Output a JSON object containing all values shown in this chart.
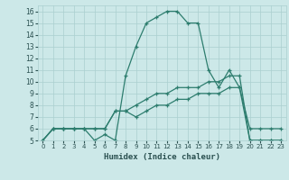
{
  "xlabel": "Humidex (Indice chaleur)",
  "xlim": [
    -0.5,
    23.5
  ],
  "ylim": [
    5,
    16.5
  ],
  "xticks": [
    0,
    1,
    2,
    3,
    4,
    5,
    6,
    7,
    8,
    9,
    10,
    11,
    12,
    13,
    14,
    15,
    16,
    17,
    18,
    19,
    20,
    21,
    22,
    23
  ],
  "yticks": [
    5,
    6,
    7,
    8,
    9,
    10,
    11,
    12,
    13,
    14,
    15,
    16
  ],
  "bg_color": "#cce8e8",
  "line_color": "#2d7d6e",
  "grid_color": "#aacfcf",
  "line1_x": [
    0,
    1,
    2,
    3,
    4,
    5,
    6,
    7,
    8,
    9,
    10,
    11,
    12,
    13,
    14,
    15,
    16,
    17,
    18,
    19,
    20,
    21,
    22,
    23
  ],
  "line1_y": [
    5,
    6,
    6,
    6,
    6,
    5,
    5.5,
    5,
    10.5,
    13,
    15,
    15.5,
    16,
    16,
    15,
    15,
    11,
    9.5,
    11,
    9.5,
    6,
    6,
    6,
    6
  ],
  "line2_x": [
    0,
    1,
    2,
    3,
    4,
    5,
    6,
    7,
    8,
    9,
    10,
    11,
    12,
    13,
    14,
    15,
    16,
    17,
    18,
    19,
    20,
    21,
    22,
    23
  ],
  "line2_y": [
    5,
    6,
    6,
    6,
    6,
    6,
    6,
    7.5,
    7.5,
    7,
    7.5,
    8,
    8,
    8.5,
    8.5,
    9,
    9,
    9,
    9.5,
    9.5,
    5,
    5,
    5,
    5
  ],
  "line3_x": [
    0,
    1,
    2,
    3,
    4,
    5,
    6,
    7,
    8,
    9,
    10,
    11,
    12,
    13,
    14,
    15,
    16,
    17,
    18,
    19,
    20,
    21,
    22,
    23
  ],
  "line3_y": [
    5,
    6,
    6,
    6,
    6,
    6,
    6,
    7.5,
    7.5,
    8,
    8.5,
    9,
    9,
    9.5,
    9.5,
    9.5,
    10,
    10,
    10.5,
    10.5,
    5,
    5,
    5,
    5
  ]
}
